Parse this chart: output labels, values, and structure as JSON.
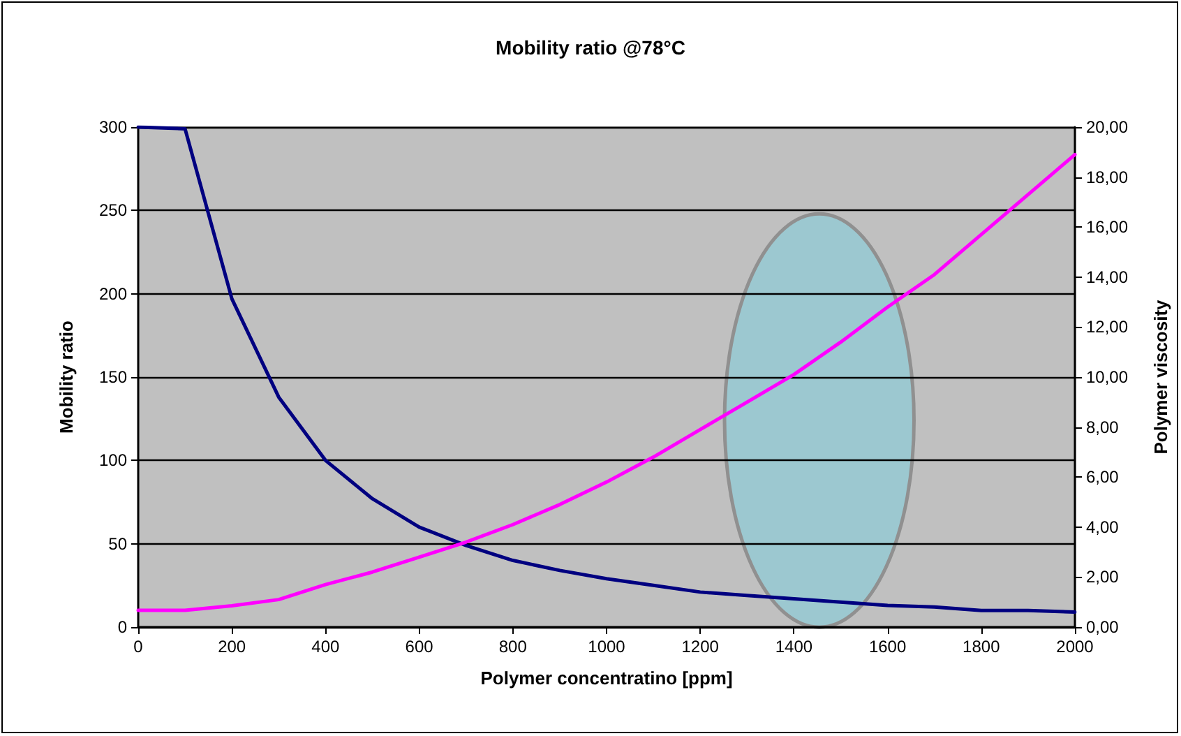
{
  "chart_data": {
    "type": "line",
    "title": "Mobility ratio @78°C",
    "xlabel": "Polymer concentratino [ppm]",
    "ylabel": "Mobility ratio",
    "y2label": "Polymer viscosity",
    "x": [
      0,
      100,
      200,
      300,
      400,
      500,
      600,
      700,
      800,
      900,
      1000,
      1100,
      1200,
      1300,
      1400,
      1500,
      1600,
      1700,
      1800,
      1900,
      2000
    ],
    "series": [
      {
        "color": "#000080",
        "values": [
          300,
          299,
          197,
          138,
          100,
          77,
          60,
          49,
          40,
          34,
          29,
          25,
          21,
          19,
          17,
          15,
          13,
          12,
          10,
          10,
          9
        ]
      },
      {
        "color": "#ff00ff",
        "axis": "y2",
        "values": [
          0.67,
          0.67,
          0.85,
          1.1,
          1.7,
          2.2,
          2.8,
          3.4,
          4.1,
          4.9,
          5.8,
          6.8,
          7.9,
          9.0,
          10.1,
          11.4,
          12.8,
          14.1,
          15.7,
          17.3,
          18.9
        ]
      }
    ],
    "xlim": [
      0,
      2000
    ],
    "xticks": [
      0,
      200,
      400,
      600,
      800,
      1000,
      1200,
      1400,
      1600,
      1800,
      2000
    ],
    "ylim": [
      0,
      300
    ],
    "yticks": [
      0,
      50,
      100,
      150,
      200,
      250,
      300
    ],
    "y2lim": [
      0,
      20
    ],
    "y2ticks": [
      {
        "value": 0,
        "label": "0,00"
      },
      {
        "value": 2,
        "label": "2,00"
      },
      {
        "value": 4,
        "label": "4,00"
      },
      {
        "value": 6,
        "label": "6,00"
      },
      {
        "value": 8,
        "label": "8,00"
      },
      {
        "value": 10,
        "label": "10,00"
      },
      {
        "value": 12,
        "label": "12,00"
      },
      {
        "value": 14,
        "label": "14,00"
      },
      {
        "value": 16,
        "label": "16,00"
      },
      {
        "value": 18,
        "label": "18,00"
      },
      {
        "value": 20,
        "label": "20,00"
      }
    ],
    "grid": "y",
    "marker": "none",
    "line_style": "solid"
  }
}
